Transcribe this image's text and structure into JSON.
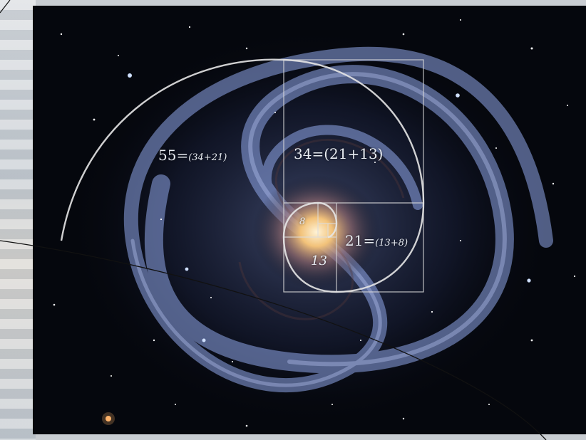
{
  "image": {
    "subject": "spiral galaxy with golden-ratio spiral overlay",
    "colors": {
      "space": "#05070d",
      "core": "#f2c27a",
      "arms": "#8fa6e8",
      "overlay": "#e6e6e6"
    }
  },
  "labels": {
    "l55": {
      "main": "55=",
      "sub": "(34+21)"
    },
    "l34": {
      "main": "34=(21+13)"
    },
    "l21": {
      "main": "21=",
      "sub": "(13+8)"
    },
    "l13": {
      "main": "13"
    },
    "l8": {
      "main": "8"
    }
  }
}
